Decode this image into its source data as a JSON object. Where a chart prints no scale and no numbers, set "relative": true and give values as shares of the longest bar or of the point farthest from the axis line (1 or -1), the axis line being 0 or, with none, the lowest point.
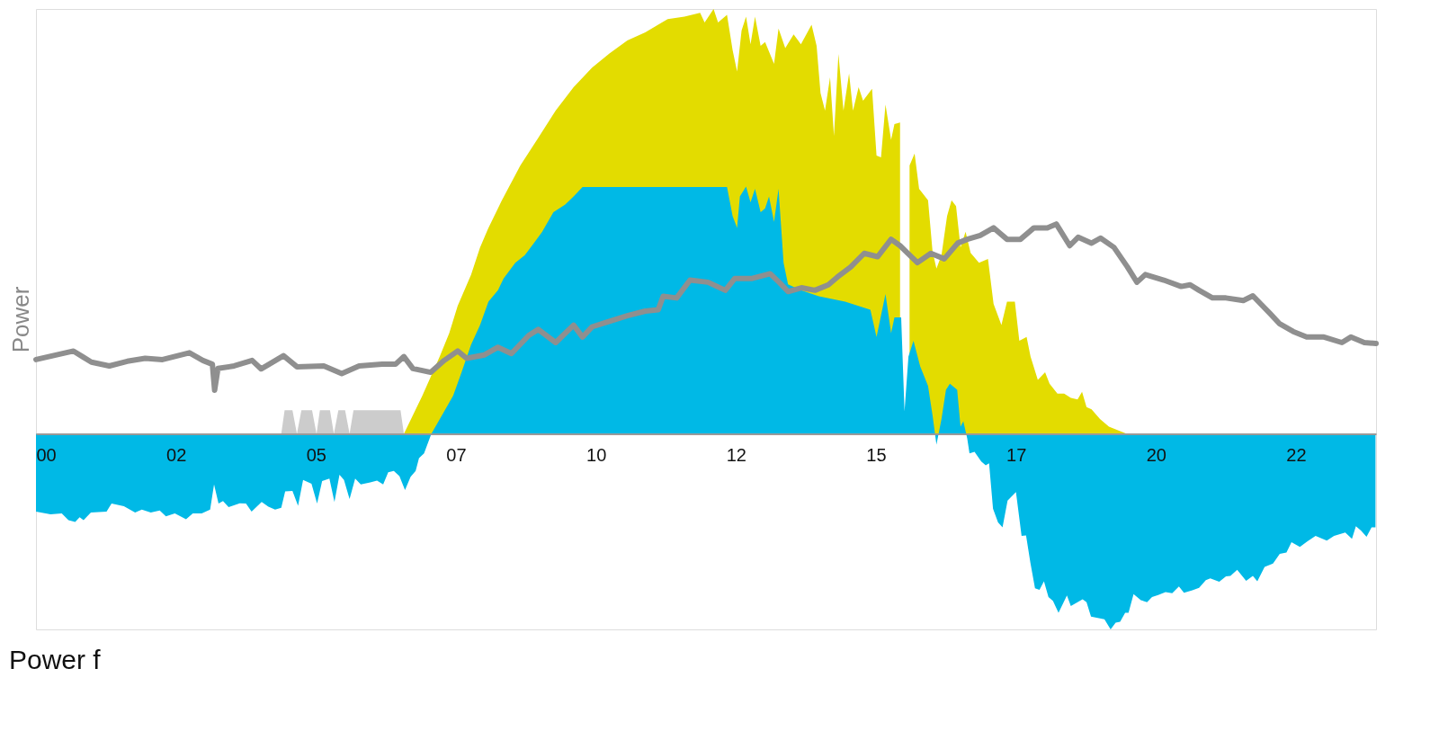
{
  "chart_data": {
    "type": "area",
    "relative": true,
    "ylabel": "Power",
    "annotations": [
      "Power f"
    ],
    "xlim": [
      0,
      23.93
    ],
    "xticks": [
      {
        "value": 0,
        "label": "00"
      },
      {
        "value": 2.5,
        "label": "02"
      },
      {
        "value": 5,
        "label": "05"
      },
      {
        "value": 7.5,
        "label": "07"
      },
      {
        "value": 10,
        "label": "10"
      },
      {
        "value": 12.5,
        "label": "12"
      },
      {
        "value": 15,
        "label": "15"
      },
      {
        "value": 17.5,
        "label": "17"
      },
      {
        "value": 20,
        "label": "20"
      },
      {
        "value": 22.5,
        "label": "22"
      }
    ],
    "series": [
      {
        "color": "#e3dc00",
        "x": [
          6.57,
          6.9,
          7.21,
          7.38,
          7.53,
          7.77,
          7.93,
          8.08,
          8.32,
          8.65,
          8.97,
          9.28,
          9.6,
          9.93,
          10.24,
          10.56,
          10.88,
          11.11,
          11.28,
          11.58,
          11.86,
          11.94,
          12.1,
          12.18,
          12.34,
          12.44,
          12.52,
          12.6,
          12.68,
          12.76,
          12.84,
          12.94,
          13.02,
          13.18,
          13.26,
          13.38,
          13.53,
          13.66,
          13.85,
          13.94,
          14.01,
          14.09,
          14.18,
          14.25,
          14.33,
          14.42,
          14.52,
          14.59,
          14.69,
          14.77,
          14.93,
          15.01,
          15.09,
          15.17,
          15.27,
          15.33,
          15.43,
          15.51,
          15.6,
          15.69,
          15.77,
          15.93,
          16.01,
          16.08,
          16.17,
          16.27,
          16.35,
          16.43,
          16.51,
          16.6,
          16.69,
          16.84,
          17,
          17.1,
          17.24,
          17.34,
          17.48,
          17.56,
          17.69,
          17.76,
          17.89,
          18.02,
          18.1,
          18.24,
          18.36,
          18.48,
          18.6,
          18.68,
          18.76,
          18.85,
          19,
          19.16,
          19.48
        ],
        "values": [
          0,
          0.09,
          0.182,
          0.237,
          0.301,
          0.375,
          0.439,
          0.485,
          0.55,
          0.632,
          0.697,
          0.761,
          0.816,
          0.862,
          0.895,
          0.926,
          0.945,
          0.963,
          0.976,
          0.982,
          0.991,
          0.968,
          1,
          0.968,
          0.986,
          0.903,
          0.853,
          0.949,
          0.982,
          0.917,
          0.982,
          0.913,
          0.922,
          0.871,
          0.954,
          0.908,
          0.94,
          0.917,
          0.963,
          0.913,
          0.802,
          0.761,
          0.839,
          0.701,
          0.894,
          0.761,
          0.848,
          0.761,
          0.816,
          0.784,
          0.812,
          0.655,
          0.651,
          0.775,
          0.692,
          0.729,
          0.733,
          null,
          0.632,
          0.66,
          0.577,
          0.55,
          0.43,
          0.389,
          0.421,
          0.513,
          0.55,
          0.536,
          0.439,
          0.476,
          0.426,
          0.403,
          0.412,
          0.306,
          0.256,
          0.311,
          0.311,
          0.219,
          0.228,
          0.182,
          0.127,
          0.145,
          0.118,
          0.095,
          0.095,
          0.085,
          0.081,
          0.099,
          0.063,
          0.058,
          0.035,
          0.017,
          0
        ]
      },
      {
        "color": "#00b9e6",
        "x": [
          0,
          0.26,
          0.46,
          0.58,
          0.7,
          0.78,
          0.85,
          0.98,
          1.26,
          1.35,
          1.57,
          1.77,
          1.89,
          2.05,
          2.21,
          2.32,
          2.48,
          2.68,
          2.8,
          2.96,
          3.11,
          3.18,
          3.26,
          3.34,
          3.44,
          3.64,
          3.75,
          3.85,
          4.03,
          4.15,
          4.27,
          4.38,
          4.45,
          4.58,
          4.68,
          4.77,
          4.92,
          5.02,
          5.11,
          5.24,
          5.33,
          5.42,
          5.5,
          5.6,
          5.7,
          5.8,
          5.97,
          6.09,
          6.2,
          6.29,
          6.39,
          6.49,
          6.59,
          6.69,
          6.78,
          6.84,
          6.93,
          7.06,
          7.29,
          7.45,
          7.6,
          7.77,
          7.93,
          8.08,
          8.25,
          8.35,
          8.56,
          8.73,
          8.89,
          9.04,
          9.24,
          9.45,
          9.6,
          9.76,
          12.34,
          12.44,
          12.52,
          12.57,
          12.68,
          12.76,
          12.84,
          12.94,
          13.02,
          13.09,
          13.18,
          13.26,
          13.35,
          13.43,
          13.66,
          13.98,
          14.45,
          14.9,
          15.01,
          15.17,
          15.27,
          15.33,
          15.45,
          15.51,
          15.58,
          15.67,
          15.79,
          15.93,
          16.01,
          16.08,
          16.17,
          16.25,
          16.32,
          16.45,
          16.51,
          16.56,
          16.63,
          16.67,
          16.76,
          16.88,
          16.96,
          17.02,
          17.09,
          17.18,
          17.26,
          17.35,
          17.5,
          17.6,
          17.68,
          17.76,
          17.84,
          17.92,
          18,
          18.08,
          18.16,
          18.26,
          18.41,
          18.48,
          18.69,
          18.76,
          18.84,
          19.08,
          19.19,
          19.28,
          19.36,
          19.45,
          19.51,
          19.6,
          19.73,
          19.84,
          19.93,
          20.04,
          20.17,
          20.29,
          20.41,
          20.5,
          20.65,
          20.77,
          20.89,
          20.97,
          21.13,
          21.25,
          21.33,
          21.45,
          21.61,
          21.73,
          21.81,
          21.94,
          22.09,
          22.21,
          22.33,
          22.42,
          22.57,
          22.7,
          22.85,
          23.05,
          23.18,
          23.38,
          23.5,
          23.57,
          23.66,
          23.76,
          23.85,
          23.92
        ],
        "values": [
          -0.183,
          -0.189,
          -0.187,
          -0.203,
          -0.207,
          -0.196,
          -0.203,
          -0.185,
          -0.183,
          -0.164,
          -0.17,
          -0.185,
          -0.178,
          -0.185,
          -0.18,
          -0.194,
          -0.187,
          -0.201,
          -0.187,
          -0.187,
          -0.178,
          -0.119,
          -0.164,
          -0.158,
          -0.172,
          -0.163,
          -0.164,
          -0.183,
          -0.16,
          -0.171,
          -0.178,
          -0.174,
          -0.135,
          -0.134,
          -0.169,
          -0.108,
          -0.117,
          -0.164,
          -0.111,
          -0.105,
          -0.16,
          -0.096,
          -0.108,
          -0.153,
          -0.105,
          -0.119,
          -0.114,
          -0.11,
          -0.119,
          -0.09,
          -0.087,
          -0.099,
          -0.132,
          -0.101,
          -0.087,
          -0.057,
          -0.046,
          0,
          0.053,
          0.09,
          0.145,
          0.21,
          0.256,
          0.311,
          0.338,
          0.366,
          0.403,
          0.421,
          0.449,
          0.476,
          0.522,
          0.54,
          0.559,
          0.581,
          0.581,
          0.513,
          0.485,
          0.559,
          0.582,
          0.545,
          0.577,
          0.522,
          0.531,
          0.559,
          0.499,
          0.577,
          0.403,
          0.352,
          0.338,
          0.324,
          0.311,
          0.292,
          0.228,
          0.329,
          0.237,
          0.274,
          0.274,
          0.053,
          0.182,
          0.219,
          0.159,
          0.113,
          0.044,
          -0.025,
          0.035,
          0.104,
          0.118,
          0.104,
          0.017,
          0.03,
          -0.011,
          -0.046,
          -0.042,
          -0.065,
          -0.074,
          -0.069,
          -0.176,
          -0.208,
          -0.22,
          -0.157,
          -0.137,
          -0.24,
          -0.239,
          -0.305,
          -0.363,
          -0.367,
          -0.347,
          -0.384,
          -0.393,
          -0.421,
          -0.38,
          -0.405,
          -0.389,
          -0.396,
          -0.43,
          -0.436,
          -0.46,
          -0.444,
          -0.442,
          -0.421,
          -0.421,
          -0.377,
          -0.391,
          -0.396,
          -0.384,
          -0.379,
          -0.372,
          -0.375,
          -0.359,
          -0.374,
          -0.368,
          -0.362,
          -0.344,
          -0.34,
          -0.348,
          -0.335,
          -0.334,
          -0.32,
          -0.346,
          -0.334,
          -0.347,
          -0.313,
          -0.305,
          -0.282,
          -0.279,
          -0.255,
          -0.266,
          -0.253,
          -0.24,
          -0.251,
          -0.24,
          -0.232,
          -0.247,
          -0.217,
          -0.227,
          -0.242,
          -0.22,
          -0.22
        ]
      },
      {
        "color": "#cccccc",
        "x": [
          4.38,
          4.44,
          4.58,
          4.66,
          4.74,
          4.93,
          5.01,
          5.07,
          5.25,
          5.32,
          5.4,
          5.52,
          5.6,
          5.67,
          6.51,
          6.57
        ],
        "values": [
          0,
          0.056,
          0.056,
          0,
          0.056,
          0.056,
          0,
          0.056,
          0.056,
          0,
          0.056,
          0.056,
          0,
          0.056,
          0.056,
          0
        ]
      },
      {
        "type": "line",
        "color": "#8f8f8f",
        "x": [
          0,
          0.67,
          0.83,
          0.99,
          1.31,
          1.63,
          1.95,
          2.26,
          2.74,
          2.98,
          3.15,
          3.19,
          3.25,
          3.54,
          3.86,
          4.02,
          4.42,
          4.66,
          5.14,
          5.46,
          5.77,
          6.18,
          6.42,
          6.57,
          6.73,
          7.05,
          7.29,
          7.53,
          7.69,
          8.01,
          8.25,
          8.49,
          8.8,
          8.97,
          9.28,
          9.6,
          9.76,
          9.93,
          10.24,
          10.56,
          10.88,
          11.11,
          11.2,
          11.44,
          11.68,
          12,
          12.31,
          12.48,
          12.79,
          13.11,
          13.27,
          13.43,
          13.67,
          13.91,
          14.15,
          14.31,
          14.55,
          14.79,
          15.03,
          15.27,
          15.43,
          15.74,
          15.98,
          16.22,
          16.46,
          16.63,
          16.86,
          17.1,
          17.34,
          17.58,
          17.82,
          18.06,
          18.22,
          18.46,
          18.61,
          18.85,
          19.01,
          19.25,
          19.49,
          19.66,
          19.81,
          20.14,
          20.45,
          20.61,
          20.77,
          21.01,
          21.25,
          21.56,
          21.73,
          22.04,
          22.21,
          22.45,
          22.69,
          23,
          23.32,
          23.48,
          23.72,
          23.93
        ],
        "values": [
          0.175,
          0.195,
          0.182,
          0.169,
          0.16,
          0.171,
          0.178,
          0.175,
          0.191,
          0.173,
          0.164,
          0.103,
          0.154,
          0.16,
          0.173,
          0.153,
          0.184,
          0.158,
          0.16,
          0.142,
          0.16,
          0.164,
          0.164,
          0.182,
          0.154,
          0.145,
          0.173,
          0.195,
          0.178,
          0.186,
          0.204,
          0.189,
          0.232,
          0.246,
          0.215,
          0.256,
          0.228,
          0.252,
          0.265,
          0.278,
          0.289,
          0.292,
          0.324,
          0.32,
          0.362,
          0.357,
          0.338,
          0.366,
          0.366,
          0.377,
          0.357,
          0.335,
          0.344,
          0.338,
          0.351,
          0.369,
          0.393,
          0.425,
          0.417,
          0.458,
          0.443,
          0.403,
          0.425,
          0.412,
          0.449,
          0.458,
          0.467,
          0.485,
          0.458,
          0.458,
          0.485,
          0.485,
          0.494,
          0.443,
          0.463,
          0.449,
          0.461,
          0.439,
          0.393,
          0.357,
          0.375,
          0.362,
          0.347,
          0.351,
          0.338,
          0.32,
          0.32,
          0.314,
          0.325,
          0.283,
          0.259,
          0.241,
          0.228,
          0.228,
          0.215,
          0.228,
          0.215,
          0.213
        ]
      }
    ]
  }
}
